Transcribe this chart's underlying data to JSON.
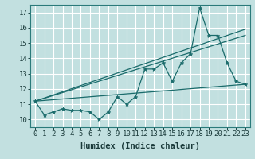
{
  "xlabel": "Humidex (Indice chaleur)",
  "bg_color": "#c2e0e0",
  "grid_color": "#ffffff",
  "line_color": "#1a6b6b",
  "xlim": [
    -0.5,
    23.5
  ],
  "ylim": [
    9.5,
    17.5
  ],
  "xticks": [
    0,
    1,
    2,
    3,
    4,
    5,
    6,
    7,
    8,
    9,
    10,
    11,
    12,
    13,
    14,
    15,
    16,
    17,
    18,
    19,
    20,
    21,
    22,
    23
  ],
  "yticks": [
    10,
    11,
    12,
    13,
    14,
    15,
    16,
    17
  ],
  "series1_x": [
    0,
    1,
    2,
    3,
    4,
    5,
    6,
    7,
    8,
    9,
    10,
    11,
    12,
    13,
    14,
    15,
    16,
    17,
    18,
    19,
    20,
    21,
    22,
    23
  ],
  "series1_y": [
    11.2,
    10.3,
    10.5,
    10.7,
    10.6,
    10.6,
    10.5,
    10.0,
    10.5,
    11.5,
    11.0,
    11.5,
    13.3,
    13.3,
    13.7,
    12.5,
    13.7,
    14.3,
    17.3,
    15.5,
    15.5,
    13.7,
    12.5,
    12.3
  ],
  "trend1_x": [
    0,
    23
  ],
  "trend1_y": [
    11.2,
    15.9
  ],
  "trend2_x": [
    0,
    23
  ],
  "trend2_y": [
    11.2,
    15.5
  ],
  "trend3_x": [
    0,
    23
  ],
  "trend3_y": [
    11.2,
    12.3
  ],
  "font_family": "monospace",
  "tick_fontsize": 6.5,
  "xlabel_fontsize": 7.5
}
